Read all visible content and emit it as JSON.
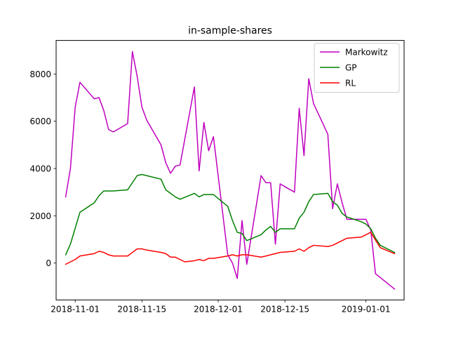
{
  "chart_data": {
    "type": "line",
    "title": "in-sample-shares",
    "xlabel": "",
    "ylabel": "",
    "x_ticks": [
      "2018-11-01",
      "2018-11-15",
      "2018-12-01",
      "2018-12-15",
      "2019-01-01"
    ],
    "y_ticks": [
      0,
      2000,
      4000,
      6000,
      8000
    ],
    "xlim": [
      "2018-10-28",
      "2019-01-09"
    ],
    "ylim": [
      -1560,
      9420
    ],
    "grid": false,
    "legend_position": "top-right",
    "series": [
      {
        "name": "Markowitz",
        "color": "#bf00bf",
        "points": [
          [
            "2018-10-30",
            2800
          ],
          [
            "2018-10-31",
            4000
          ],
          [
            "2018-11-01",
            6600
          ],
          [
            "2018-11-02",
            7650
          ],
          [
            "2018-11-05",
            6950
          ],
          [
            "2018-11-06",
            7000
          ],
          [
            "2018-11-07",
            6450
          ],
          [
            "2018-11-08",
            5650
          ],
          [
            "2018-11-09",
            5550
          ],
          [
            "2018-11-12",
            5900
          ],
          [
            "2018-11-13",
            8950
          ],
          [
            "2018-11-14",
            7900
          ],
          [
            "2018-11-15",
            6600
          ],
          [
            "2018-11-16",
            6050
          ],
          [
            "2018-11-19",
            5000
          ],
          [
            "2018-11-20",
            4250
          ],
          [
            "2018-11-21",
            3800
          ],
          [
            "2018-11-22",
            4100
          ],
          [
            "2018-11-23",
            4150
          ],
          [
            "2018-11-26",
            7450
          ],
          [
            "2018-11-27",
            3900
          ],
          [
            "2018-11-28",
            5950
          ],
          [
            "2018-11-29",
            4750
          ],
          [
            "2018-11-30",
            5350
          ],
          [
            "2018-12-03",
            350
          ],
          [
            "2018-12-04",
            0
          ],
          [
            "2018-12-05",
            -650
          ],
          [
            "2018-12-06",
            1800
          ],
          [
            "2018-12-07",
            -50
          ],
          [
            "2018-12-10",
            3700
          ],
          [
            "2018-12-11",
            3400
          ],
          [
            "2018-12-12",
            3400
          ],
          [
            "2018-12-13",
            800
          ],
          [
            "2018-12-14",
            3350
          ],
          [
            "2018-12-17",
            3000
          ],
          [
            "2018-12-18",
            6550
          ],
          [
            "2018-12-19",
            4550
          ],
          [
            "2018-12-20",
            7800
          ],
          [
            "2018-12-21",
            6750
          ],
          [
            "2018-12-24",
            5450
          ],
          [
            "2018-12-25",
            2300
          ],
          [
            "2018-12-26",
            3350
          ],
          [
            "2018-12-27",
            2550
          ],
          [
            "2018-12-28",
            1850
          ],
          [
            "2018-12-31",
            1850
          ],
          [
            "2019-01-01",
            1850
          ],
          [
            "2019-01-02",
            1400
          ],
          [
            "2019-01-03",
            -450
          ],
          [
            "2019-01-07",
            -1100
          ]
        ]
      },
      {
        "name": "GP",
        "color": "#008000",
        "points": [
          [
            "2018-10-30",
            350
          ],
          [
            "2018-10-31",
            800
          ],
          [
            "2018-11-02",
            2150
          ],
          [
            "2018-11-05",
            2550
          ],
          [
            "2018-11-06",
            2850
          ],
          [
            "2018-11-07",
            3050
          ],
          [
            "2018-11-09",
            3050
          ],
          [
            "2018-11-12",
            3100
          ],
          [
            "2018-11-13",
            3400
          ],
          [
            "2018-11-14",
            3700
          ],
          [
            "2018-11-15",
            3750
          ],
          [
            "2018-11-19",
            3550
          ],
          [
            "2018-11-20",
            3100
          ],
          [
            "2018-11-21",
            2950
          ],
          [
            "2018-11-22",
            2800
          ],
          [
            "2018-11-23",
            2700
          ],
          [
            "2018-11-26",
            2950
          ],
          [
            "2018-11-27",
            2800
          ],
          [
            "2018-11-28",
            2900
          ],
          [
            "2018-11-30",
            2900
          ],
          [
            "2018-12-03",
            2400
          ],
          [
            "2018-12-04",
            1800
          ],
          [
            "2018-12-05",
            1300
          ],
          [
            "2018-12-06",
            1250
          ],
          [
            "2018-12-07",
            950
          ],
          [
            "2018-12-10",
            1200
          ],
          [
            "2018-12-11",
            1400
          ],
          [
            "2018-12-12",
            1550
          ],
          [
            "2018-12-13",
            1300
          ],
          [
            "2018-12-14",
            1450
          ],
          [
            "2018-12-17",
            1450
          ],
          [
            "2018-12-18",
            1900
          ],
          [
            "2018-12-19",
            2150
          ],
          [
            "2018-12-20",
            2600
          ],
          [
            "2018-12-21",
            2900
          ],
          [
            "2018-12-24",
            2950
          ],
          [
            "2018-12-25",
            2600
          ],
          [
            "2018-12-26",
            2450
          ],
          [
            "2018-12-27",
            2100
          ],
          [
            "2018-12-28",
            1950
          ],
          [
            "2018-12-31",
            1750
          ],
          [
            "2019-01-01",
            1650
          ],
          [
            "2019-01-02",
            1450
          ],
          [
            "2019-01-03",
            1050
          ],
          [
            "2019-01-04",
            750
          ],
          [
            "2019-01-07",
            450
          ]
        ]
      },
      {
        "name": "RL",
        "color": "#ff0000",
        "points": [
          [
            "2018-10-30",
            -50
          ],
          [
            "2018-10-31",
            50
          ],
          [
            "2018-11-01",
            150
          ],
          [
            "2018-11-02",
            300
          ],
          [
            "2018-11-05",
            400
          ],
          [
            "2018-11-06",
            500
          ],
          [
            "2018-11-07",
            450
          ],
          [
            "2018-11-08",
            350
          ],
          [
            "2018-11-09",
            300
          ],
          [
            "2018-11-12",
            300
          ],
          [
            "2018-11-13",
            450
          ],
          [
            "2018-11-14",
            600
          ],
          [
            "2018-11-15",
            600
          ],
          [
            "2018-11-16",
            550
          ],
          [
            "2018-11-19",
            450
          ],
          [
            "2018-11-20",
            400
          ],
          [
            "2018-11-21",
            250
          ],
          [
            "2018-11-22",
            250
          ],
          [
            "2018-11-23",
            150
          ],
          [
            "2018-11-24",
            50
          ],
          [
            "2018-11-26",
            100
          ],
          [
            "2018-11-27",
            150
          ],
          [
            "2018-11-28",
            100
          ],
          [
            "2018-11-29",
            200
          ],
          [
            "2018-11-30",
            200
          ],
          [
            "2018-12-03",
            300
          ],
          [
            "2018-12-04",
            350
          ],
          [
            "2018-12-05",
            300
          ],
          [
            "2018-12-06",
            350
          ],
          [
            "2018-12-07",
            350
          ],
          [
            "2018-12-10",
            250
          ],
          [
            "2018-12-11",
            300
          ],
          [
            "2018-12-12",
            350
          ],
          [
            "2018-12-13",
            400
          ],
          [
            "2018-12-14",
            450
          ],
          [
            "2018-12-17",
            500
          ],
          [
            "2018-12-18",
            600
          ],
          [
            "2018-12-19",
            500
          ],
          [
            "2018-12-20",
            650
          ],
          [
            "2018-12-21",
            750
          ],
          [
            "2018-12-24",
            700
          ],
          [
            "2018-12-25",
            750
          ],
          [
            "2018-12-26",
            850
          ],
          [
            "2018-12-27",
            950
          ],
          [
            "2018-12-28",
            1050
          ],
          [
            "2018-12-31",
            1100
          ],
          [
            "2019-01-01",
            1200
          ],
          [
            "2019-01-02",
            1300
          ],
          [
            "2019-01-04",
            650
          ],
          [
            "2019-01-07",
            400
          ]
        ]
      }
    ]
  }
}
